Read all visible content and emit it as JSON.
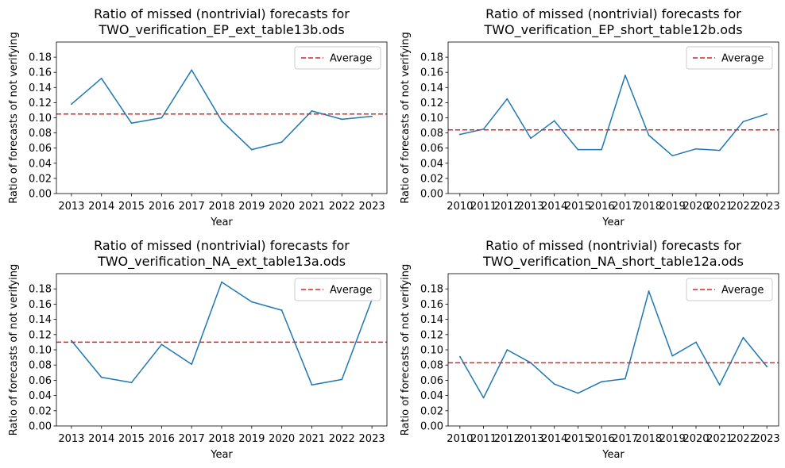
{
  "figure": {
    "colors": {
      "line": "#1f77b4",
      "average": "#d62728",
      "axis": "#000000",
      "legend_border": "#cccccc"
    }
  },
  "chart_data": [
    {
      "type": "line",
      "title": "Ratio of missed (nontrivial) forecasts for\nTWO_verification_EP_ext_table13b.ods",
      "xlabel": "Year",
      "ylabel": "Ratio of forecasts of not verifying",
      "x": [
        2013,
        2014,
        2015,
        2016,
        2017,
        2018,
        2019,
        2020,
        2021,
        2022,
        2023
      ],
      "series": [
        {
          "values": [
            0.118,
            0.152,
            0.093,
            0.1,
            0.163,
            0.096,
            0.058,
            0.068,
            0.109,
            0.098,
            0.102
          ]
        }
      ],
      "average": {
        "name": "Average",
        "value": 0.105
      },
      "xlim": [
        2012.5,
        2023.5
      ],
      "ylim": [
        0,
        0.2
      ],
      "yticks": [
        "0.00",
        "0.02",
        "0.04",
        "0.06",
        "0.08",
        "0.10",
        "0.12",
        "0.14",
        "0.16",
        "0.18"
      ],
      "legend": "top-right",
      "grid": false
    },
    {
      "type": "line",
      "title": "Ratio of missed (nontrivial) forecasts for\nTWO_verification_EP_short_table12b.ods",
      "xlabel": "Year",
      "ylabel": "Ratio of forecasts of not verifying",
      "x": [
        2010,
        2011,
        2012,
        2013,
        2014,
        2015,
        2016,
        2017,
        2018,
        2019,
        2020,
        2021,
        2022,
        2023
      ],
      "series": [
        {
          "values": [
            0.078,
            0.085,
            0.125,
            0.073,
            0.096,
            0.058,
            0.058,
            0.156,
            0.077,
            0.05,
            0.059,
            0.057,
            0.095,
            0.105
          ]
        }
      ],
      "average": {
        "name": "Average",
        "value": 0.084
      },
      "xlim": [
        2009.5,
        2023.5
      ],
      "ylim": [
        0,
        0.2
      ],
      "yticks": [
        "0.00",
        "0.02",
        "0.04",
        "0.06",
        "0.08",
        "0.10",
        "0.12",
        "0.14",
        "0.16",
        "0.18"
      ],
      "legend": "top-right",
      "grid": false
    },
    {
      "type": "line",
      "title": "Ratio of missed (nontrivial) forecasts for\nTWO_verification_NA_ext_table13a.ods",
      "xlabel": "Year",
      "ylabel": "Ratio of forecasts of not verifying",
      "x": [
        2013,
        2014,
        2015,
        2016,
        2017,
        2018,
        2019,
        2020,
        2021,
        2022,
        2023
      ],
      "series": [
        {
          "values": [
            0.112,
            0.064,
            0.057,
            0.107,
            0.081,
            0.189,
            0.163,
            0.152,
            0.054,
            0.061,
            0.166
          ]
        }
      ],
      "average": {
        "name": "Average",
        "value": 0.11
      },
      "xlim": [
        2012.5,
        2023.5
      ],
      "ylim": [
        0,
        0.2
      ],
      "yticks": [
        "0.00",
        "0.02",
        "0.04",
        "0.06",
        "0.08",
        "0.10",
        "0.12",
        "0.14",
        "0.16",
        "0.18"
      ],
      "legend": "top-right",
      "grid": false
    },
    {
      "type": "line",
      "title": "Ratio of missed (nontrivial) forecasts for\nTWO_verification_NA_short_table12a.ods",
      "xlabel": "Year",
      "ylabel": "Ratio of forecasts of not verifying",
      "x": [
        2010,
        2011,
        2012,
        2013,
        2014,
        2015,
        2016,
        2017,
        2018,
        2019,
        2020,
        2021,
        2022,
        2023
      ],
      "series": [
        {
          "values": [
            0.091,
            0.037,
            0.1,
            0.083,
            0.055,
            0.043,
            0.058,
            0.062,
            0.177,
            0.092,
            0.11,
            0.054,
            0.116,
            0.078
          ]
        }
      ],
      "average": {
        "name": "Average",
        "value": 0.083
      },
      "xlim": [
        2009.5,
        2023.5
      ],
      "ylim": [
        0,
        0.2
      ],
      "yticks": [
        "0.00",
        "0.02",
        "0.04",
        "0.06",
        "0.08",
        "0.10",
        "0.12",
        "0.14",
        "0.16",
        "0.18"
      ],
      "legend": "top-right",
      "grid": false
    }
  ]
}
